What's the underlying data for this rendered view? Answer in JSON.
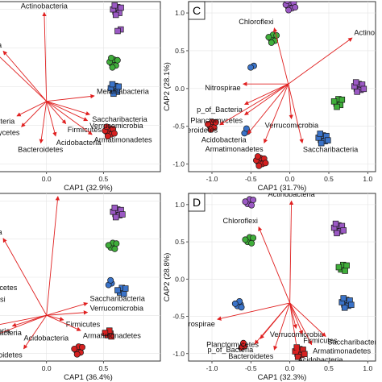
{
  "colors": {
    "purple": "#9b59c4",
    "green": "#3fae3a",
    "blue": "#3a73c9",
    "red": "#d62020",
    "arrow": "#e02020"
  },
  "chart_data": [
    {
      "type": "scatter",
      "panel_label": "",
      "xlabel": "CAP1 (32.9%)",
      "ylabel": "",
      "xlim": [
        -0.55,
        1.0
      ],
      "ylim": [
        -1.1,
        1.1
      ],
      "xticks": [
        {
          "v": -0.5,
          "t": "5"
        },
        {
          "v": 0.0,
          "t": "0.0"
        },
        {
          "v": 0.5,
          "t": "0.5"
        }
      ],
      "yticks": [],
      "groups": [
        {
          "color": "purple",
          "shape": "square",
          "x": 0.62,
          "y": 0.99,
          "n": 8
        },
        {
          "color": "purple",
          "shape": "square",
          "x": 0.64,
          "y": 0.74,
          "n": 2
        },
        {
          "color": "green",
          "shape": "circle",
          "x": 0.59,
          "y": 0.31,
          "n": 8
        },
        {
          "color": "blue",
          "shape": "square",
          "x": 0.6,
          "y": -0.03,
          "n": 8
        },
        {
          "color": "red",
          "shape": "circle",
          "x": 0.55,
          "y": -0.58,
          "n": 9
        }
      ],
      "arrow_origin": [
        0.0,
        -0.19
      ],
      "arrows": [
        {
          "name": "Actinobacteria",
          "x": -0.02,
          "y": 0.96
        },
        {
          "name": "richaeota",
          "x": -0.38,
          "y": 0.46
        },
        {
          "name": "Melainabacteria",
          "x": 0.42,
          "y": -0.12
        },
        {
          "name": "Saccharibacteria",
          "x": 0.38,
          "y": -0.36
        },
        {
          "name": "Verrucomicrobia",
          "x": 0.36,
          "y": -0.44
        },
        {
          "name": "Proteobacteria",
          "x": -0.26,
          "y": -0.38
        },
        {
          "name": "Firmicutes",
          "x": 0.17,
          "y": -0.48
        },
        {
          "name": "ctomycetes",
          "x": -0.22,
          "y": -0.52
        },
        {
          "name": "Armatimonadetes",
          "x": 0.4,
          "y": -0.62
        },
        {
          "name": "Acidobacteria",
          "x": 0.08,
          "y": -0.64
        },
        {
          "name": "Bacteroidetes",
          "x": -0.05,
          "y": -0.73
        },
        {
          "name": "",
          "x": -0.55,
          "y": 0.58
        }
      ]
    },
    {
      "type": "scatter",
      "panel_label": "C",
      "xlabel": "CAP1 (31.7%)",
      "ylabel": "CAP2 (28.1%)",
      "xlim": [
        -1.3,
        1.1
      ],
      "ylim": [
        -1.1,
        1.15
      ],
      "xticks": [
        {
          "v": -1.0,
          "t": "-1.0"
        },
        {
          "v": -0.5,
          "t": "-0.5"
        },
        {
          "v": 0.0,
          "t": "0.0"
        },
        {
          "v": 0.5,
          "t": "0.5"
        },
        {
          "v": 1.0,
          "t": "1.0"
        }
      ],
      "yticks": [
        {
          "v": -1.0,
          "t": "-1.0"
        },
        {
          "v": -0.5,
          "t": "-0.5"
        },
        {
          "v": 0.0,
          "t": "0.0"
        },
        {
          "v": 0.5,
          "t": "0.5"
        },
        {
          "v": 1.0,
          "t": "1.0"
        }
      ],
      "groups": [
        {
          "color": "purple",
          "shape": "circle",
          "x": 0.0,
          "y": 1.1,
          "n": 9
        },
        {
          "color": "green",
          "shape": "circle",
          "x": -0.22,
          "y": 0.67,
          "n": 7
        },
        {
          "color": "blue",
          "shape": "circle",
          "x": -0.48,
          "y": 0.3,
          "n": 2
        },
        {
          "color": "purple",
          "shape": "square",
          "x": 0.88,
          "y": 0.02,
          "n": 9
        },
        {
          "color": "green",
          "shape": "square",
          "x": 0.62,
          "y": -0.18,
          "n": 7
        },
        {
          "color": "blue",
          "shape": "square",
          "x": 0.42,
          "y": -0.66,
          "n": 9
        },
        {
          "color": "red",
          "shape": "circle",
          "x": -1.0,
          "y": -0.48,
          "n": 7
        },
        {
          "color": "blue",
          "shape": "circle",
          "x": -0.56,
          "y": -0.57,
          "n": 3
        },
        {
          "color": "red",
          "shape": "circle",
          "x": -0.38,
          "y": -0.96,
          "n": 9
        }
      ],
      "arrow_origin": [
        -0.02,
        0.06
      ],
      "arrows": [
        {
          "name": "Chloroflexi",
          "x": -0.2,
          "y": 0.8
        },
        {
          "name": "Actinobacteria",
          "x": 0.8,
          "y": 0.67
        },
        {
          "name": "Nitrospirae",
          "x": -0.6,
          "y": 0.06
        },
        {
          "name": "p_of_Bacteria",
          "x": -0.58,
          "y": -0.21
        },
        {
          "name": "Planctomycetes",
          "x": -0.58,
          "y": -0.35
        },
        {
          "name": "Bacteroidetes",
          "x": -0.9,
          "y": -0.48
        },
        {
          "name": "Acidobacteria",
          "x": -0.54,
          "y": -0.6
        },
        {
          "name": "Verrucomicrobia",
          "x": 0.02,
          "y": -0.4
        },
        {
          "name": "Armatimonadetes",
          "x": -0.33,
          "y": -0.72
        },
        {
          "name": "Saccharibacteria",
          "x": 0.16,
          "y": -0.72
        }
      ]
    },
    {
      "type": "scatter",
      "panel_label": "",
      "xlabel": "CAP1 (36.4%)",
      "ylabel": "",
      "xlim": [
        -0.55,
        1.0
      ],
      "ylim": [
        -1.1,
        1.1
      ],
      "xticks": [
        {
          "v": -0.5,
          "t": "5"
        },
        {
          "v": 0.0,
          "t": "0.0"
        },
        {
          "v": 0.5,
          "t": "0.5"
        }
      ],
      "yticks": [],
      "groups": [
        {
          "color": "purple",
          "shape": "square",
          "x": 0.62,
          "y": 0.85,
          "n": 9
        },
        {
          "color": "green",
          "shape": "circle",
          "x": 0.58,
          "y": 0.41,
          "n": 6
        },
        {
          "color": "blue",
          "shape": "circle",
          "x": 0.56,
          "y": -0.08,
          "n": 3
        },
        {
          "color": "blue",
          "shape": "square",
          "x": 0.66,
          "y": -0.18,
          "n": 6
        },
        {
          "color": "red",
          "shape": "circle",
          "x": 0.28,
          "y": -0.95,
          "n": 7
        },
        {
          "color": "red",
          "shape": "square",
          "x": 0.55,
          "y": -0.74,
          "n": 5
        }
      ],
      "arrow_origin": [
        0.0,
        -0.5
      ],
      "arrows": [
        {
          "name": "Actinobacteria",
          "x": 0.1,
          "y": 1.06
        },
        {
          "name": "alditrichaeota",
          "x": -0.38,
          "y": 0.51
        },
        {
          "name": "Saccharibacteria",
          "x": 0.36,
          "y": -0.34
        },
        {
          "name": "Verrucomicrobia",
          "x": 0.36,
          "y": -0.46
        },
        {
          "name": "Firmicutes",
          "x": 0.15,
          "y": -0.56
        },
        {
          "name": "oteobacteria",
          "x": -0.3,
          "y": -0.64
        },
        {
          "name": "Armatimonadetes",
          "x": 0.3,
          "y": -0.7
        },
        {
          "name": "Bacteroidetes",
          "x": -0.2,
          "y": -0.94
        },
        {
          "name": "",
          "x": -0.52,
          "y": -0.8
        },
        {
          "name": "",
          "x": -0.48,
          "y": -0.64
        }
      ],
      "extra_labels": [
        {
          "text": "mycetes",
          "x": -0.5,
          "y": -0.17
        },
        {
          "text": "lvisi",
          "x": -0.47,
          "y": -0.32
        },
        {
          "text": "bacteria",
          "x": -0.45,
          "y": -0.76
        },
        {
          "text": "Acidobacteria",
          "x": -0.2,
          "y": -0.83
        }
      ]
    },
    {
      "type": "scatter",
      "panel_label": "D",
      "xlabel": "CAP1 (32.3%)",
      "ylabel": "CAP2 (28.8%)",
      "xlim": [
        -1.3,
        1.1
      ],
      "ylim": [
        -1.1,
        1.15
      ],
      "xticks": [
        {
          "v": -1.0,
          "t": "-1.0"
        },
        {
          "v": -0.5,
          "t": "-0.5"
        },
        {
          "v": 0.0,
          "t": "0.0"
        },
        {
          "v": 0.5,
          "t": "0.5"
        },
        {
          "v": 1.0,
          "t": "1.0"
        }
      ],
      "yticks": [
        {
          "v": -1.0,
          "t": "-1.0"
        },
        {
          "v": -0.5,
          "t": "-0.5"
        },
        {
          "v": 0.0,
          "t": "0.0"
        },
        {
          "v": 0.5,
          "t": "0.5"
        },
        {
          "v": 1.0,
          "t": "1.0"
        }
      ],
      "groups": [
        {
          "color": "purple",
          "shape": "circle",
          "x": -0.52,
          "y": 1.03,
          "n": 6
        },
        {
          "color": "green",
          "shape": "circle",
          "x": -0.52,
          "y": 0.52,
          "n": 6
        },
        {
          "color": "purple",
          "shape": "square",
          "x": 0.62,
          "y": 0.68,
          "n": 9
        },
        {
          "color": "green",
          "shape": "square",
          "x": 0.68,
          "y": 0.15,
          "n": 6
        },
        {
          "color": "blue",
          "shape": "circle",
          "x": -0.65,
          "y": -0.34,
          "n": 5
        },
        {
          "color": "blue",
          "shape": "square",
          "x": 0.72,
          "y": -0.32,
          "n": 9
        },
        {
          "color": "red",
          "shape": "circle",
          "x": -0.6,
          "y": -0.9,
          "n": 3
        },
        {
          "color": "red",
          "shape": "square",
          "x": 0.12,
          "y": -0.98,
          "n": 9
        }
      ],
      "arrow_origin": [
        0.0,
        -0.32
      ],
      "arrows": [
        {
          "name": "Actinobacteria",
          "x": 0.02,
          "y": 1.05
        },
        {
          "name": "Chloroflexi",
          "x": -0.4,
          "y": 0.7
        },
        {
          "name": "Nitrospirae",
          "x": -0.93,
          "y": -0.54
        },
        {
          "name": "Planctomycetes",
          "x": -0.38,
          "y": -0.8
        },
        {
          "name": "p_of_Bacteria",
          "x": -0.45,
          "y": -0.87
        },
        {
          "name": "Bacteroidetes",
          "x": -0.2,
          "y": -0.95
        },
        {
          "name": "Acidobacteria",
          "x": 0.1,
          "y": -1.0
        },
        {
          "name": "Armatimonadetes",
          "x": 0.28,
          "y": -0.88
        },
        {
          "name": "Firmicutes",
          "x": 0.16,
          "y": -0.74
        },
        {
          "name": "Verrucomicrobia",
          "x": 0.08,
          "y": -0.66
        },
        {
          "name": "Saccharibacteria",
          "x": 0.46,
          "y": -0.77
        }
      ]
    }
  ]
}
